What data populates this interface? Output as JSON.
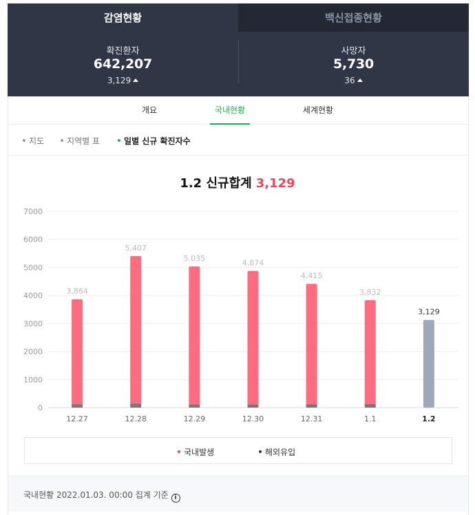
{
  "tabs": [
    {
      "label": "감염현황",
      "active": true
    },
    {
      "label": "백신접종현황",
      "active": false
    }
  ],
  "stats": {
    "confirmed": {
      "label": "확진환자",
      "value": "642,207",
      "delta": "3,129"
    },
    "deaths": {
      "label": "사망자",
      "value": "5,730",
      "delta": "36"
    }
  },
  "subtabs": [
    {
      "label": "개요",
      "active": false
    },
    {
      "label": "국내현황",
      "active": true
    },
    {
      "label": "세계현황",
      "active": false
    }
  ],
  "filters": [
    {
      "label": "지도",
      "active": false
    },
    {
      "label": "지역별 표",
      "active": false
    },
    {
      "label": "일별 신규 확진자수",
      "active": true
    }
  ],
  "chart_title": {
    "date": "1.2",
    "text": "신규합계",
    "total": "3,129"
  },
  "colors": {
    "domestic": "#ff6b7f",
    "imported": "#777777",
    "today": "#9ea8bb",
    "accent": "#1db450",
    "highlight": "#f0445c"
  },
  "chart_data": {
    "type": "bar",
    "categories": [
      "12.27",
      "12.28",
      "12.29",
      "12.30",
      "12.31",
      "1.1",
      "1.2"
    ],
    "series": [
      {
        "name": "국내발생",
        "values": [
          3750,
          5270,
          4930,
          4770,
          4300,
          3710,
          3129
        ]
      },
      {
        "name": "해외유입",
        "values": [
          114,
          137,
          105,
          104,
          115,
          122,
          0
        ]
      }
    ],
    "totals": [
      3864,
      5407,
      5035,
      4874,
      4415,
      3832,
      3129
    ],
    "total_labels": [
      "3,864",
      "5,407",
      "5,035",
      "4,874",
      "4,415",
      "3,832",
      "3,129"
    ],
    "yticks": [
      0,
      1000,
      2000,
      3000,
      4000,
      5000,
      6000,
      7000
    ],
    "ylim": [
      0,
      7000
    ],
    "grid": true,
    "legend_position": "bottom"
  },
  "legend": [
    {
      "label": "국내발생",
      "color": "#f0445c"
    },
    {
      "label": "해외유입",
      "color": "#333333"
    }
  ],
  "footer": {
    "text": "국내현황 2022.01.03. 00:00 집계 기준",
    "info_icon": "info-icon"
  }
}
